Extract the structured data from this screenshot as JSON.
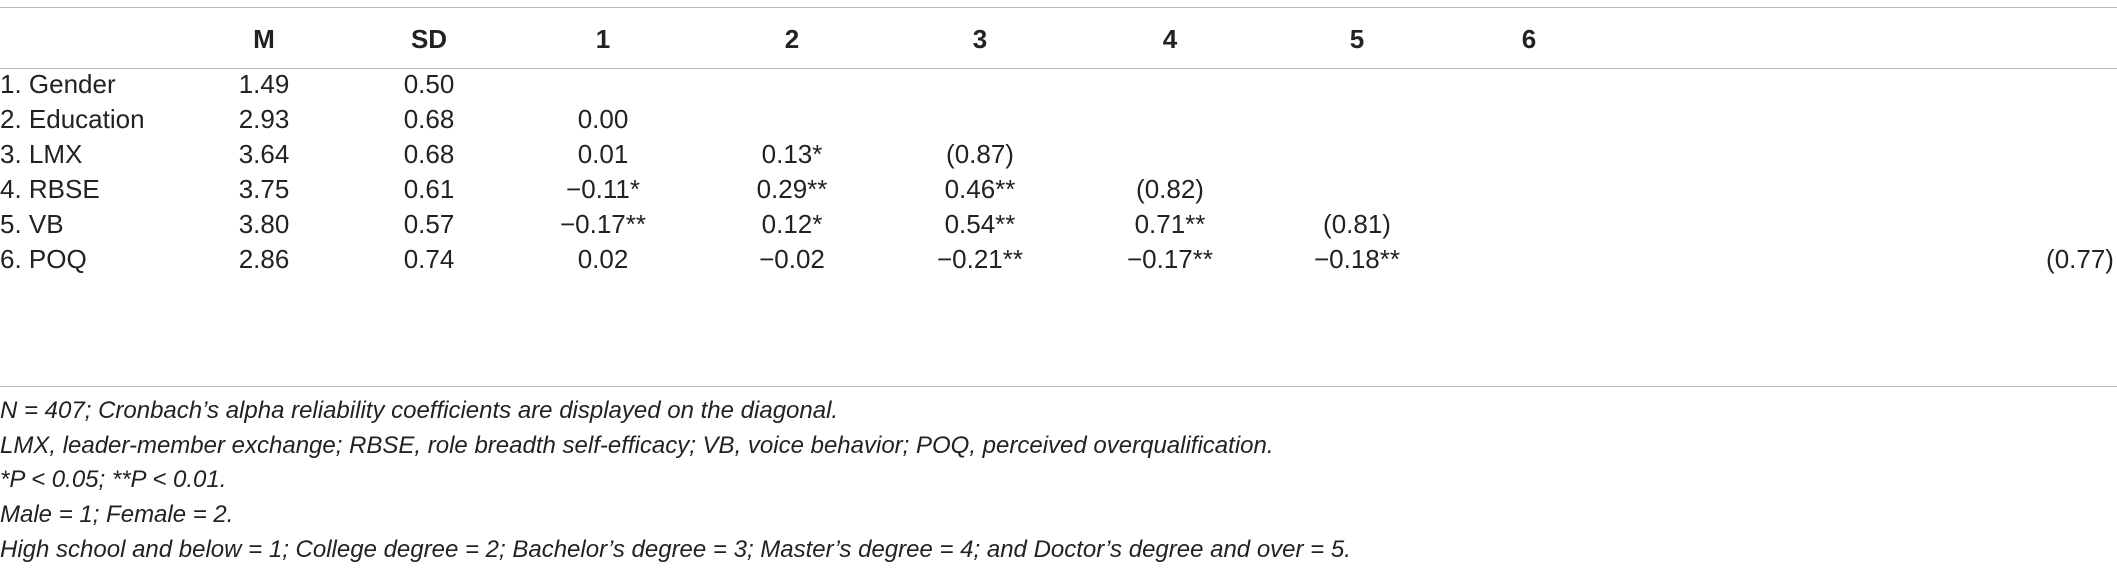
{
  "table": {
    "headers": [
      "M",
      "SD",
      "1",
      "2",
      "3",
      "4",
      "5",
      "6"
    ],
    "rows": [
      {
        "label": "1. Gender",
        "cells": [
          "1.49",
          "0.50",
          "",
          "",
          "",
          "",
          "",
          ""
        ]
      },
      {
        "label": "2. Education",
        "cells": [
          "2.93",
          "0.68",
          "0.00",
          "",
          "",
          "",
          "",
          ""
        ]
      },
      {
        "label": "3. LMX",
        "cells": [
          "3.64",
          "0.68",
          "0.01",
          "0.13*",
          "(0.87)",
          "",
          "",
          ""
        ]
      },
      {
        "label": "4. RBSE",
        "cells": [
          "3.75",
          "0.61",
          "−0.11*",
          "0.29**",
          "0.46**",
          "(0.82)",
          "",
          ""
        ]
      },
      {
        "label": "5. VB",
        "cells": [
          "3.80",
          "0.57",
          "−0.17**",
          "0.12*",
          "0.54**",
          "0.71**",
          "(0.81)",
          ""
        ]
      },
      {
        "label": "6. POQ",
        "cells": [
          "2.86",
          "0.74",
          "0.02",
          "−0.02",
          "−0.21**",
          "−0.17**",
          "−0.18**",
          "(0.77)"
        ]
      }
    ]
  },
  "notes": [
    "N = 407; Cronbach’s alpha reliability coefficients are displayed on the diagonal.",
    "LMX, leader-member exchange; RBSE, role breadth self-efficacy; VB, voice behavior; POQ, perceived overqualification.",
    "*P < 0.05; **P < 0.01.",
    "Male = 1; Female = 2.",
    "High school and below = 1; College degree = 2; Bachelor’s degree = 3; Master’s degree = 4; and Doctor’s degree and over = 5."
  ]
}
